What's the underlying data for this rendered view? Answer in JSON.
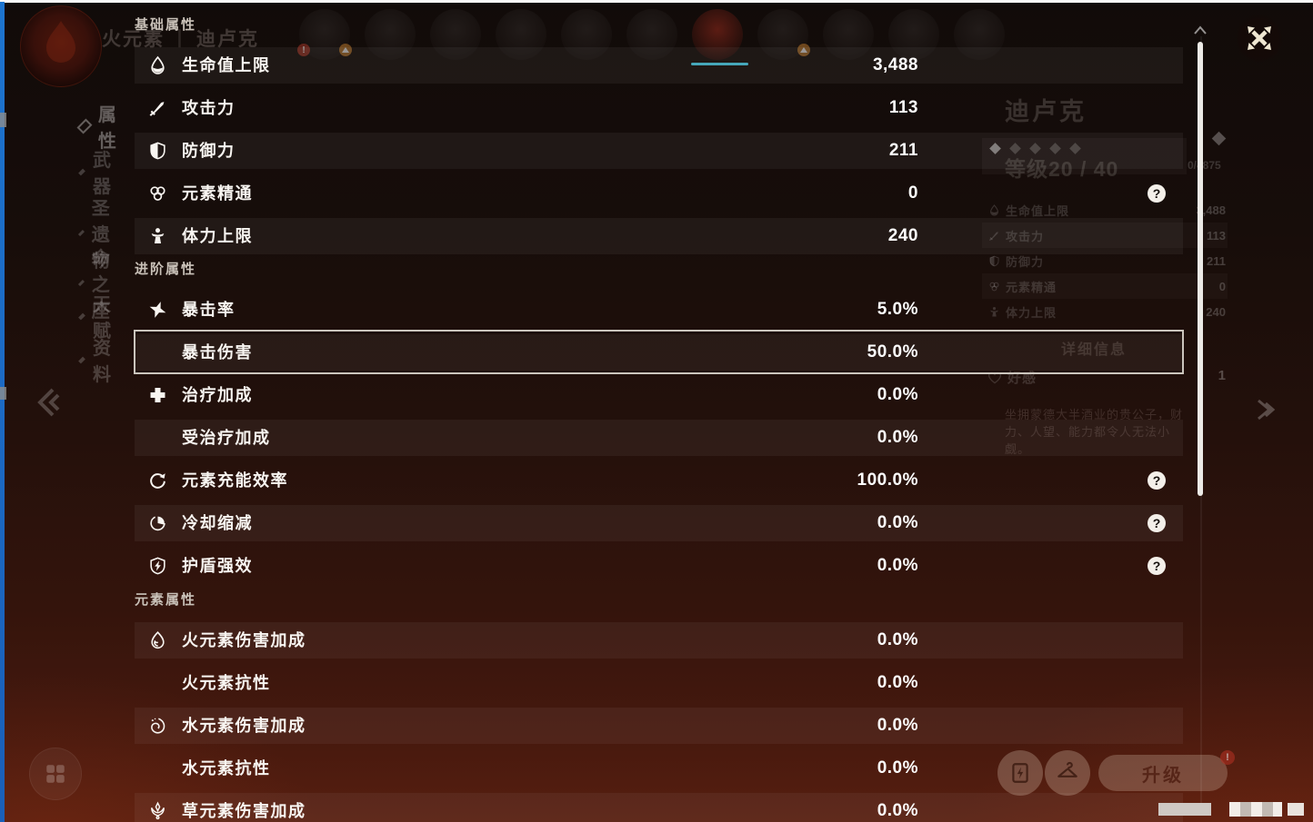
{
  "background": {
    "top_header": {
      "element": "火元素",
      "separator": "丨",
      "character": "迪卢克"
    },
    "sidebar": {
      "items": [
        {
          "label": "属性",
          "selected": true
        },
        {
          "label": "武器",
          "selected": false
        },
        {
          "label": "圣遗物",
          "selected": false
        },
        {
          "label": "命之座",
          "selected": false
        },
        {
          "label": "天赋",
          "selected": false
        },
        {
          "label": "资料",
          "selected": false
        }
      ]
    },
    "party_avatars": {
      "count": 11,
      "selected_index": 6,
      "exclamation_badge": "!"
    },
    "character_panel": {
      "name": "迪卢克",
      "rarity_stars": 5,
      "level": "等级20 / 40",
      "exp_counter": "0/4875",
      "stats": [
        {
          "icon": "hp-icon",
          "label": "生命值上限",
          "value": "3,488"
        },
        {
          "icon": "atk-icon",
          "label": "攻击力",
          "value": "113"
        },
        {
          "icon": "def-icon",
          "label": "防御力",
          "value": "211"
        },
        {
          "icon": "elemental-mastery-icon",
          "label": "元素精通",
          "value": "0"
        },
        {
          "icon": "stamina-icon",
          "label": "体力上限",
          "value": "240"
        }
      ],
      "details_button": "详细信息",
      "friendship": {
        "label": "好感",
        "value": "1"
      },
      "description": "坐拥蒙德大半酒业的贵公子，财力、人望、能力都令人无法小觑。"
    },
    "bottom_bar": {
      "upgrade_button": "升级",
      "upgrade_badge": "!"
    }
  },
  "panel": {
    "help_symbol": "?",
    "sections": [
      {
        "title": "基础属性",
        "rows": [
          {
            "icon": "hp-icon",
            "label": "生命值上限",
            "value": "3,488",
            "help": false,
            "selected": false
          },
          {
            "icon": "atk-icon",
            "label": "攻击力",
            "value": "113",
            "help": false,
            "selected": false
          },
          {
            "icon": "def-icon",
            "label": "防御力",
            "value": "211",
            "help": false,
            "selected": false
          },
          {
            "icon": "elemental-mastery-icon",
            "label": "元素精通",
            "value": "0",
            "help": true,
            "selected": false
          },
          {
            "icon": "stamina-icon",
            "label": "体力上限",
            "value": "240",
            "help": false,
            "selected": false
          }
        ]
      },
      {
        "title": "进阶属性",
        "rows": [
          {
            "icon": "crit-rate-icon",
            "label": "暴击率",
            "value": "5.0%",
            "help": false,
            "selected": false
          },
          {
            "icon": null,
            "label": "暴击伤害",
            "value": "50.0%",
            "help": false,
            "selected": true
          },
          {
            "icon": "healing-bonus-icon",
            "label": "治疗加成",
            "value": "0.0%",
            "help": false,
            "selected": false
          },
          {
            "icon": null,
            "label": "受治疗加成",
            "value": "0.0%",
            "help": false,
            "selected": false
          },
          {
            "icon": "energy-recharge-icon",
            "label": "元素充能效率",
            "value": "100.0%",
            "help": true,
            "selected": false
          },
          {
            "icon": "cooldown-reduction-icon",
            "label": "冷却缩减",
            "value": "0.0%",
            "help": true,
            "selected": false
          },
          {
            "icon": "shield-strength-icon",
            "label": "护盾强效",
            "value": "0.0%",
            "help": true,
            "selected": false
          }
        ]
      },
      {
        "title": "元素属性",
        "rows": [
          {
            "icon": "pyro-icon",
            "label": "火元素伤害加成",
            "value": "0.0%",
            "help": false,
            "selected": false
          },
          {
            "icon": null,
            "label": "火元素抗性",
            "value": "0.0%",
            "help": false,
            "selected": false
          },
          {
            "icon": "hydro-icon",
            "label": "水元素伤害加成",
            "value": "0.0%",
            "help": false,
            "selected": false
          },
          {
            "icon": null,
            "label": "水元素抗性",
            "value": "0.0%",
            "help": false,
            "selected": false
          },
          {
            "icon": "dendro-icon",
            "label": "草元素伤害加成",
            "value": "0.0%",
            "help": false,
            "selected": false
          }
        ]
      }
    ]
  }
}
